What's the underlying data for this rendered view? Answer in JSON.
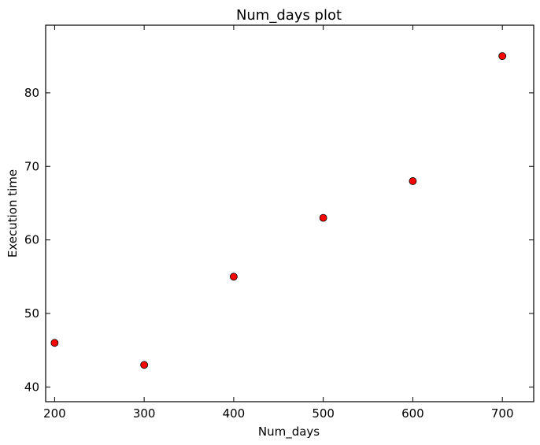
{
  "chart_data": {
    "type": "scatter",
    "title": "Num_days plot",
    "xlabel": "Num_days",
    "ylabel": "Execution time",
    "xlim": [
      190,
      735
    ],
    "ylim": [
      38,
      89.2
    ],
    "x_ticks": [
      200,
      300,
      400,
      500,
      600,
      700
    ],
    "y_ticks": [
      40,
      50,
      60,
      70,
      80
    ],
    "grid": false,
    "legend": "none",
    "series": [
      {
        "color": "#ff0000",
        "edge_color": "#000000",
        "marker": "circle",
        "points": [
          {
            "x": 200,
            "y": 46
          },
          {
            "x": 300,
            "y": 43
          },
          {
            "x": 400,
            "y": 55
          },
          {
            "x": 500,
            "y": 63
          },
          {
            "x": 600,
            "y": 68
          },
          {
            "x": 700,
            "y": 85
          }
        ]
      }
    ]
  }
}
